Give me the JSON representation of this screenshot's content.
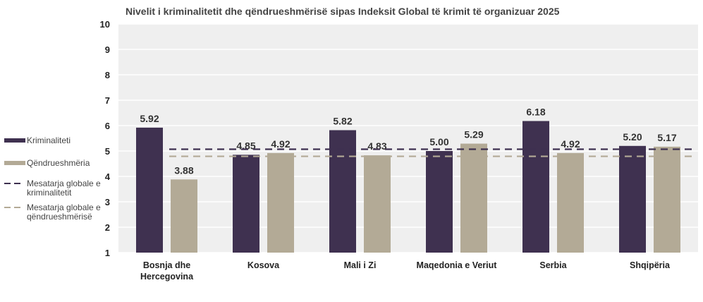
{
  "chart_data": {
    "type": "bar",
    "title": "Nivelit i kriminalitetit dhe qëndrueshmërisë sipas Indeksit Global të krimit të organizuar 2025",
    "categories": [
      [
        "Bosnja dhe",
        "Hercegovina"
      ],
      [
        "Kosova"
      ],
      [
        "Mali i Zi"
      ],
      [
        "Maqedonia e Veriut"
      ],
      [
        "Serbia"
      ],
      [
        "Shqipëria"
      ]
    ],
    "series": [
      {
        "name": "Kriminaliteti",
        "color": "#3f3150",
        "values": [
          5.92,
          4.85,
          5.82,
          5.0,
          6.18,
          5.2
        ],
        "labels": [
          "5.92",
          "4.85",
          "5.82",
          "5.00",
          "6.18",
          "5.20"
        ]
      },
      {
        "name": "Qëndrueshmëria",
        "color": "#b3aa96",
        "values": [
          3.88,
          4.92,
          4.83,
          5.29,
          4.92,
          5.17
        ],
        "labels": [
          "3.88",
          "4.92",
          "4.83",
          "5.29",
          "4.92",
          "5.17"
        ]
      }
    ],
    "reference_lines": [
      {
        "name": "Mesatarja globale e kriminalitetit",
        "lines": [
          "Mesatarja globale e",
          "kriminalitetit"
        ],
        "value": 5.07,
        "color": "#3f3150"
      },
      {
        "name": "Mesatarja globale e qëndrueshmërisë",
        "lines": [
          "Mesatarja globale e",
          "qëndrueshmërisë"
        ],
        "value": 4.79,
        "color": "#b3aa96"
      }
    ],
    "ylim": [
      1,
      10
    ],
    "yticks": [
      "1",
      "2",
      "3",
      "4",
      "5",
      "6",
      "7",
      "8",
      "9",
      "10"
    ],
    "grid": true,
    "legend": "left",
    "xlabel": "",
    "ylabel": ""
  }
}
